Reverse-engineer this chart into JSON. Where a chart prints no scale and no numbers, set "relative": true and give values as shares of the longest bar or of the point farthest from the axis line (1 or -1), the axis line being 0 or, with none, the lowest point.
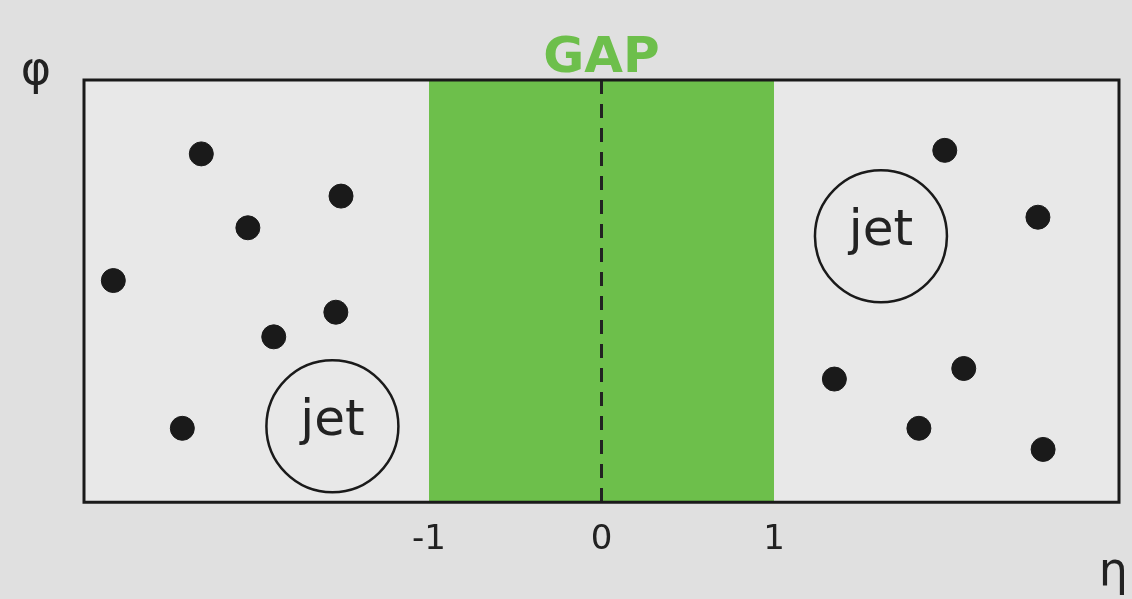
{
  "chart_data": {
    "type": "scatter",
    "xlabel": "η",
    "ylabel": "φ",
    "relative": true,
    "x": [
      -2.32,
      -1.51,
      -2.05,
      -2.83,
      -1.54,
      -1.9,
      -2.43,
      1.99,
      2.53,
      1.35,
      2.1,
      1.84,
      2.56
    ],
    "series": [
      {
        "color": "#1a1a1a",
        "values": [
          0.99,
          0.87,
          0.78,
          0.63,
          0.54,
          0.47,
          0.21,
          1.0,
          0.81,
          0.35,
          0.38,
          0.21,
          0.15
        ]
      }
    ],
    "xlim": [
      -3,
      3
    ],
    "xticks": [
      -1,
      0,
      1
    ],
    "bands": [
      {
        "axis": "x",
        "from": -1,
        "to": 1,
        "label": "GAP",
        "color": "#6dbf4b"
      }
    ],
    "ref_lines": [
      {
        "axis": "x",
        "value": 0,
        "color": "#222222",
        "line_style": "dashed"
      }
    ],
    "annotations": [
      "jet",
      "jet"
    ],
    "marker": "circle",
    "grid": false,
    "legend": false
  }
}
